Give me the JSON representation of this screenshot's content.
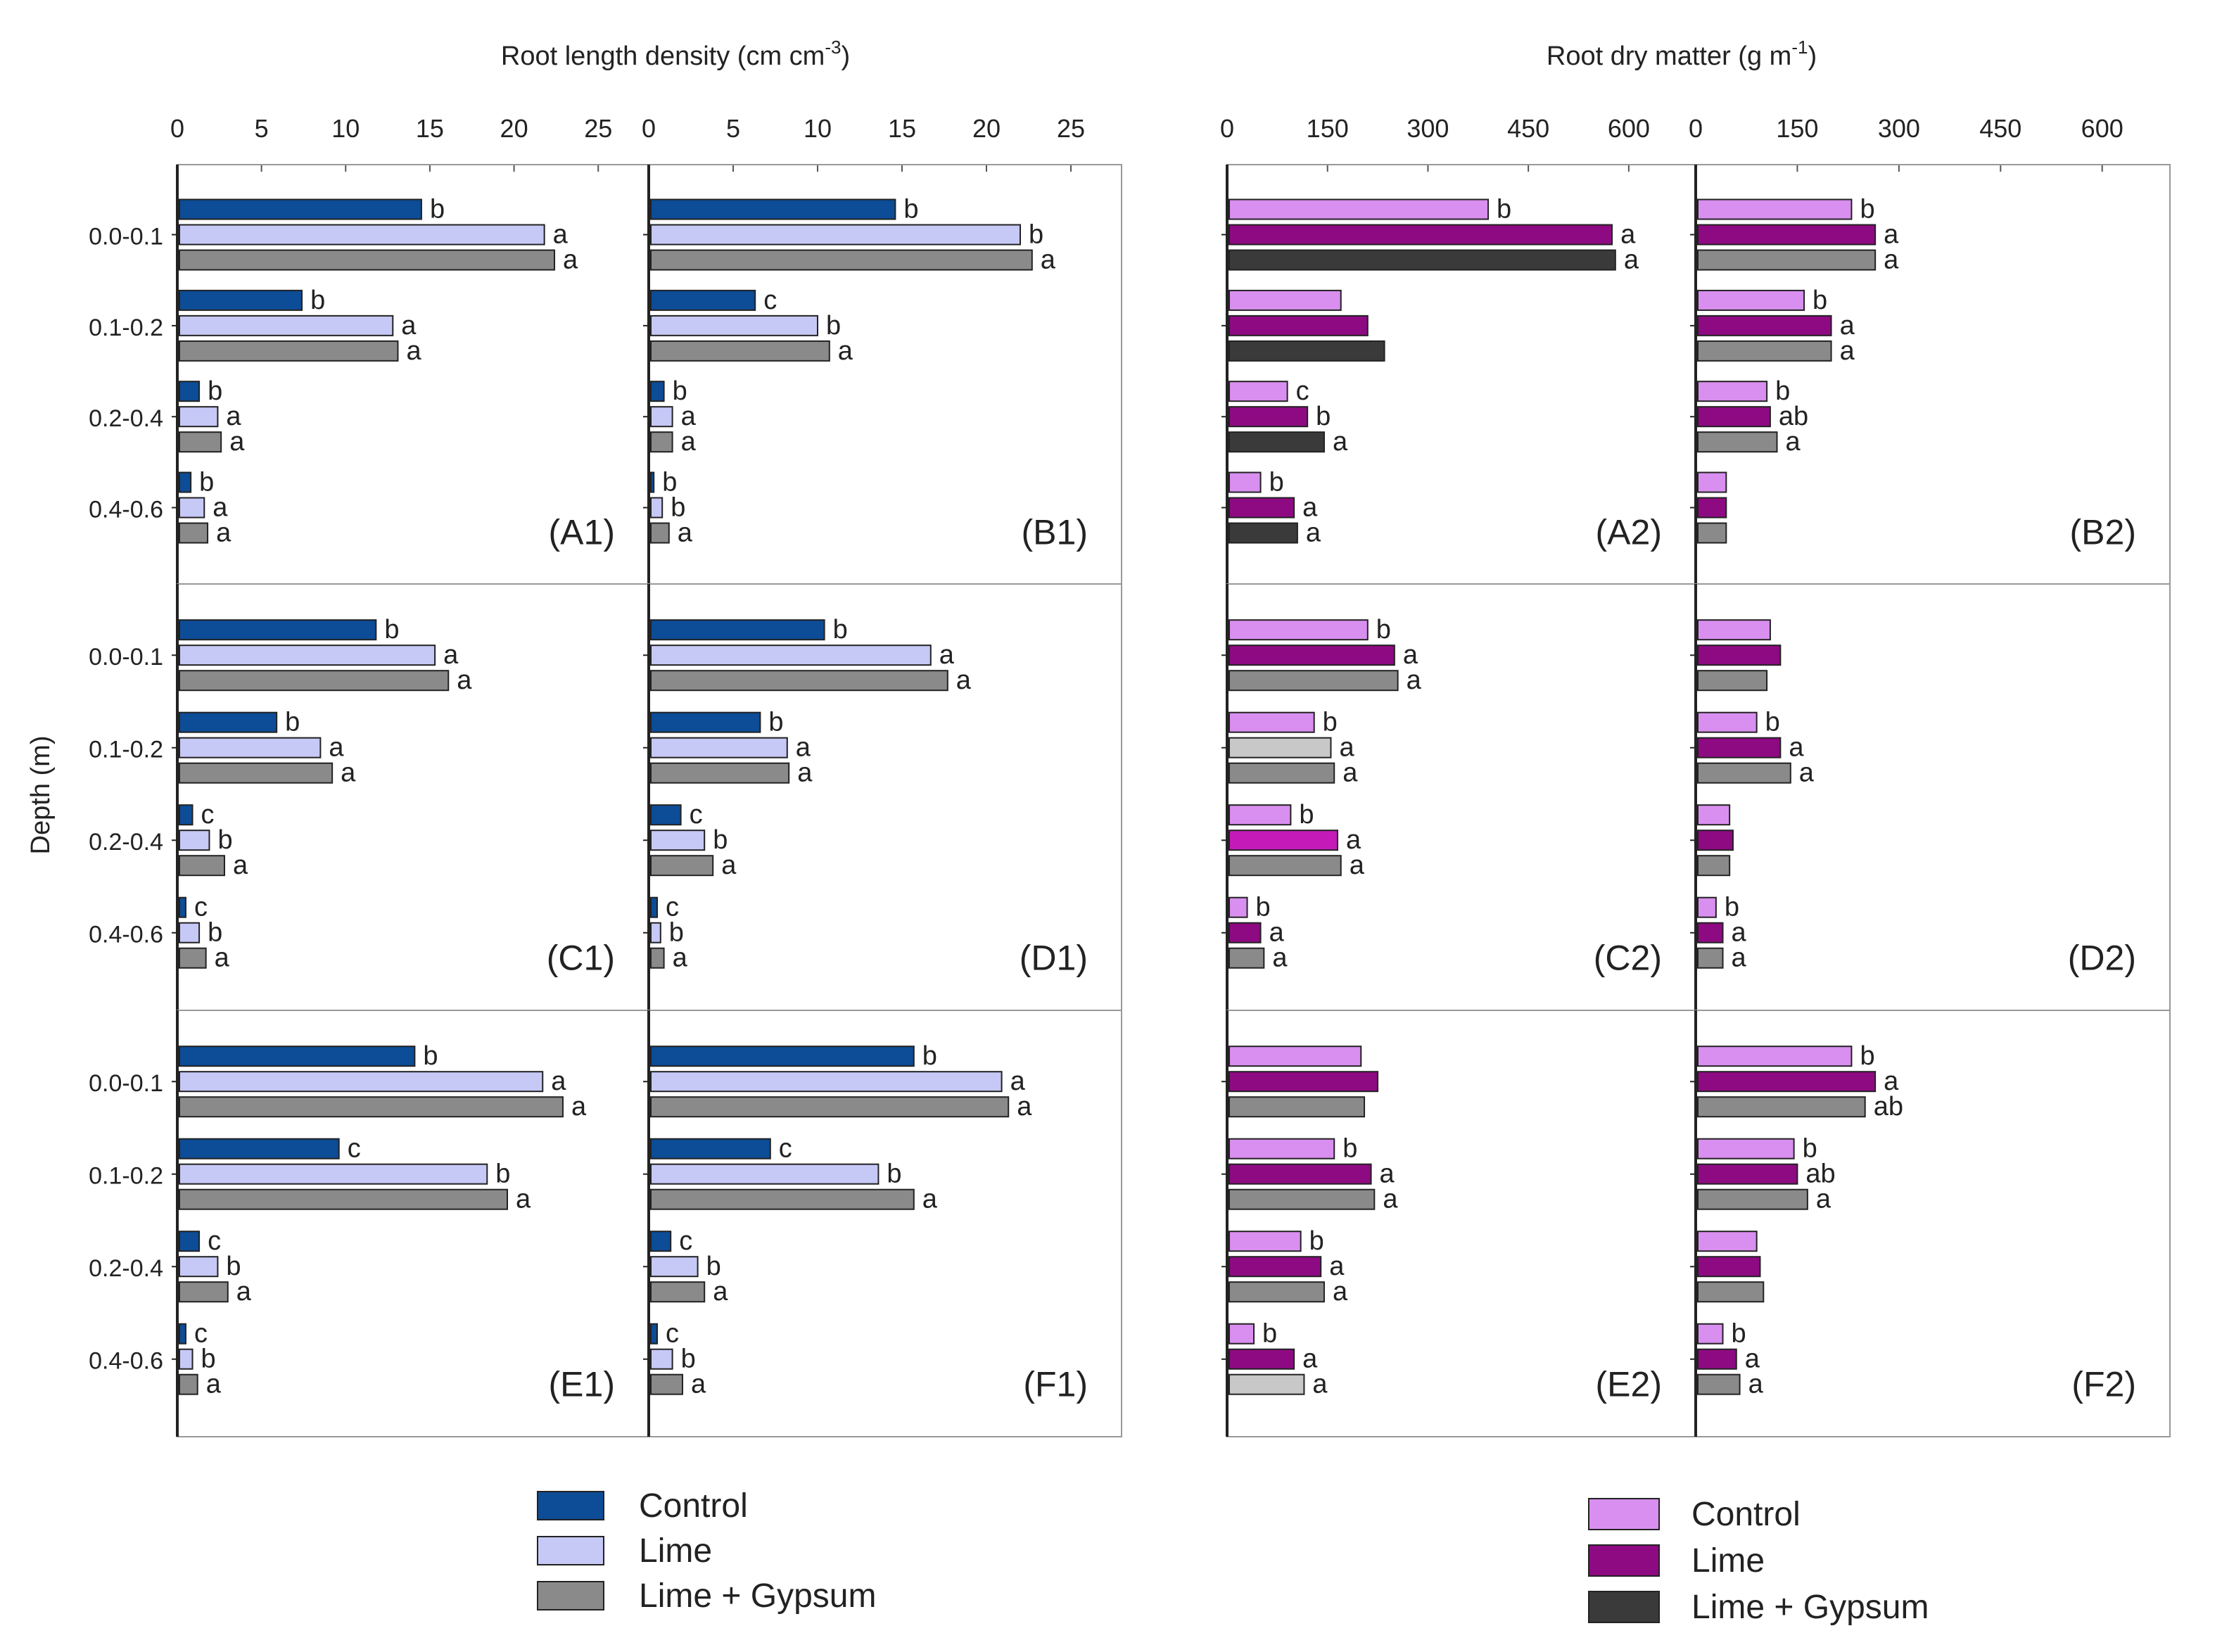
{
  "chart_data": {
    "type": "bar",
    "orientation": "horizontal",
    "titles": {
      "rld": [
        "Root length density (cm cm",
        "-3",
        ")"
      ],
      "rdm": [
        "Root dry matter (g m",
        "-1",
        ")"
      ]
    },
    "ylabel": "Depth (m)",
    "depths": [
      "0.0-0.1",
      "0.1-0.2",
      "0.2-0.4",
      "0.4-0.6"
    ],
    "rld_axis": {
      "xlim": [
        0,
        28
      ],
      "ticks": [
        "0",
        "5",
        "10",
        "15",
        "20",
        "25"
      ]
    },
    "rdm_axis": {
      "xlim": [
        0,
        700
      ],
      "ticks": [
        "0",
        "150",
        "300",
        "450",
        "600"
      ]
    },
    "legends": {
      "rld": [
        {
          "label": "Control",
          "color": "#0d4c96"
        },
        {
          "label": "Lime",
          "color": "#c6c8f6"
        },
        {
          "label": "Lime + Gypsum",
          "color": "#8a8a8a"
        }
      ],
      "rdm": [
        {
          "label": "Control",
          "color": "#d98fef"
        },
        {
          "label": "Lime",
          "color": "#8e0a82"
        },
        {
          "label": "Lime + Gypsum",
          "color": "#3a3a3a"
        }
      ]
    },
    "panels": [
      {
        "id": "A1",
        "label": "(A1)",
        "metric": "rld",
        "groups": [
          {
            "values": [
              14.5,
              21.8,
              22.4
            ],
            "letters": [
              "b",
              "a",
              "a"
            ]
          },
          {
            "values": [
              7.4,
              12.8,
              13.1
            ],
            "letters": [
              "b",
              "a",
              "a"
            ]
          },
          {
            "values": [
              1.3,
              2.4,
              2.6
            ],
            "letters": [
              "b",
              "a",
              "a"
            ]
          },
          {
            "values": [
              0.8,
              1.6,
              1.8
            ],
            "letters": [
              "b",
              "a",
              "a"
            ]
          }
        ]
      },
      {
        "id": "B1",
        "label": "(B1)",
        "metric": "rld",
        "groups": [
          {
            "values": [
              14.6,
              22.0,
              22.7
            ],
            "letters": [
              "b",
              "b",
              "a"
            ]
          },
          {
            "values": [
              6.3,
              10.0,
              10.7
            ],
            "letters": [
              "c",
              "b",
              "a"
            ]
          },
          {
            "values": [
              0.9,
              1.4,
              1.4
            ],
            "letters": [
              "b",
              "a",
              "a"
            ]
          },
          {
            "values": [
              0.3,
              0.8,
              1.2
            ],
            "letters": [
              "b",
              "b",
              "a"
            ]
          }
        ]
      },
      {
        "id": "C1",
        "label": "(C1)",
        "metric": "rld",
        "groups": [
          {
            "values": [
              11.8,
              15.3,
              16.1
            ],
            "letters": [
              "b",
              "a",
              "a"
            ]
          },
          {
            "values": [
              5.9,
              8.5,
              9.2
            ],
            "letters": [
              "b",
              "a",
              "a"
            ]
          },
          {
            "values": [
              0.9,
              1.9,
              2.8
            ],
            "letters": [
              "c",
              "b",
              "a"
            ]
          },
          {
            "values": [
              0.5,
              1.3,
              1.7
            ],
            "letters": [
              "c",
              "b",
              "a"
            ]
          }
        ]
      },
      {
        "id": "D1",
        "label": "(D1)",
        "metric": "rld",
        "groups": [
          {
            "values": [
              10.4,
              16.7,
              17.7
            ],
            "letters": [
              "b",
              "a",
              "a"
            ]
          },
          {
            "values": [
              6.6,
              8.2,
              8.3
            ],
            "letters": [
              "b",
              "a",
              "a"
            ]
          },
          {
            "values": [
              1.9,
              3.3,
              3.8
            ],
            "letters": [
              "c",
              "b",
              "a"
            ]
          },
          {
            "values": [
              0.5,
              0.7,
              0.9
            ],
            "letters": [
              "c",
              "b",
              "a"
            ]
          }
        ]
      },
      {
        "id": "E1",
        "label": "(E1)",
        "metric": "rld",
        "groups": [
          {
            "values": [
              14.1,
              21.7,
              22.9
            ],
            "letters": [
              "b",
              "a",
              "a"
            ]
          },
          {
            "values": [
              9.6,
              18.4,
              19.6
            ],
            "letters": [
              "c",
              "b",
              "a"
            ]
          },
          {
            "values": [
              1.3,
              2.4,
              3.0
            ],
            "letters": [
              "c",
              "b",
              "a"
            ]
          },
          {
            "values": [
              0.5,
              0.9,
              1.2
            ],
            "letters": [
              "c",
              "b",
              "a"
            ]
          }
        ]
      },
      {
        "id": "F1",
        "label": "(F1)",
        "metric": "rld",
        "groups": [
          {
            "values": [
              15.7,
              20.9,
              21.3
            ],
            "letters": [
              "b",
              "a",
              "a"
            ]
          },
          {
            "values": [
              7.2,
              13.6,
              15.7
            ],
            "letters": [
              "c",
              "b",
              "a"
            ]
          },
          {
            "values": [
              1.3,
              2.9,
              3.3
            ],
            "letters": [
              "c",
              "b",
              "a"
            ]
          },
          {
            "values": [
              0.5,
              1.4,
              2.0
            ],
            "letters": [
              "c",
              "b",
              "a"
            ]
          }
        ]
      },
      {
        "id": "A2",
        "label": "(A2)",
        "metric": "rdm",
        "colors": [
          "#d98fef",
          "#8e0a82",
          "#3a3a3a"
        ],
        "groups": [
          {
            "values": [
              390,
              575,
              580
            ],
            "letters": [
              "b",
              "a",
              "a"
            ]
          },
          {
            "values": [
              170,
              210,
              235
            ],
            "letters": [
              "",
              "",
              ""
            ]
          },
          {
            "values": [
              90,
              120,
              145
            ],
            "letters": [
              "c",
              "b",
              "a"
            ]
          },
          {
            "values": [
              50,
              100,
              105
            ],
            "letters": [
              "b",
              "a",
              "a"
            ]
          }
        ]
      },
      {
        "id": "B2",
        "label": "(B2)",
        "metric": "rdm",
        "colors": [
          "#d98fef",
          "#8e0a82",
          "#8a8a8a"
        ],
        "groups": [
          {
            "values": [
              230,
              265,
              265
            ],
            "letters": [
              "b",
              "a",
              "a"
            ]
          },
          {
            "values": [
              160,
              200,
              200
            ],
            "letters": [
              "b",
              "a",
              "a"
            ]
          },
          {
            "values": [
              105,
              110,
              120
            ],
            "letters": [
              "b",
              "ab",
              "a"
            ]
          },
          {
            "values": [
              45,
              45,
              45
            ],
            "letters": [
              "",
              "",
              ""
            ]
          }
        ]
      },
      {
        "id": "C2",
        "label": "(C2)",
        "metric": "rdm",
        "colors": [
          "#d98fef",
          "#8e0a82",
          "#8a8a8a"
        ],
        "mark_colors": [
          [
            null,
            null,
            null
          ],
          [
            null,
            "#c8c8c8",
            null
          ],
          [
            null,
            "#c41ab8",
            null
          ],
          [
            null,
            null,
            null
          ]
        ],
        "groups": [
          {
            "values": [
              210,
              250,
              255
            ],
            "letters": [
              "b",
              "a",
              "a"
            ]
          },
          {
            "values": [
              130,
              155,
              160
            ],
            "letters": [
              "b",
              "a",
              "a"
            ]
          },
          {
            "values": [
              95,
              165,
              170
            ],
            "letters": [
              "b",
              "a",
              "a"
            ]
          },
          {
            "values": [
              30,
              50,
              55
            ],
            "letters": [
              "b",
              "a",
              "a"
            ]
          }
        ]
      },
      {
        "id": "D2",
        "label": "(D2)",
        "metric": "rdm",
        "colors": [
          "#d98fef",
          "#8e0a82",
          "#8a8a8a"
        ],
        "groups": [
          {
            "values": [
              110,
              125,
              105
            ],
            "letters": [
              "",
              "",
              ""
            ]
          },
          {
            "values": [
              90,
              125,
              140
            ],
            "letters": [
              "b",
              "a",
              "a"
            ]
          },
          {
            "values": [
              50,
              55,
              50
            ],
            "letters": [
              "",
              "",
              ""
            ]
          },
          {
            "values": [
              30,
              40,
              40
            ],
            "letters": [
              "b",
              "a",
              "a"
            ]
          }
        ]
      },
      {
        "id": "E2",
        "label": "(E2)",
        "metric": "rdm",
        "colors": [
          "#d98fef",
          "#8e0a82",
          "#8a8a8a"
        ],
        "mark_colors": [
          [
            null,
            null,
            null
          ],
          [
            null,
            null,
            null
          ],
          [
            null,
            null,
            null
          ],
          [
            null,
            null,
            "#c8c8c8"
          ]
        ],
        "groups": [
          {
            "values": [
              200,
              225,
              205
            ],
            "letters": [
              "",
              "",
              ""
            ]
          },
          {
            "values": [
              160,
              215,
              220
            ],
            "letters": [
              "b",
              "a",
              "a"
            ]
          },
          {
            "values": [
              110,
              140,
              145
            ],
            "letters": [
              "b",
              "a",
              "a"
            ]
          },
          {
            "values": [
              40,
              100,
              115
            ],
            "letters": [
              "b",
              "a",
              "a"
            ]
          }
        ]
      },
      {
        "id": "F2",
        "label": "(F2)",
        "metric": "rdm",
        "colors": [
          "#d98fef",
          "#8e0a82",
          "#8a8a8a"
        ],
        "groups": [
          {
            "values": [
              230,
              265,
              250
            ],
            "letters": [
              "b",
              "a",
              "ab"
            ]
          },
          {
            "values": [
              145,
              150,
              165
            ],
            "letters": [
              "b",
              "ab",
              "a"
            ]
          },
          {
            "values": [
              90,
              95,
              100
            ],
            "letters": [
              "",
              "",
              ""
            ]
          },
          {
            "values": [
              40,
              60,
              65
            ],
            "letters": [
              "b",
              "a",
              "a"
            ]
          }
        ]
      }
    ]
  }
}
